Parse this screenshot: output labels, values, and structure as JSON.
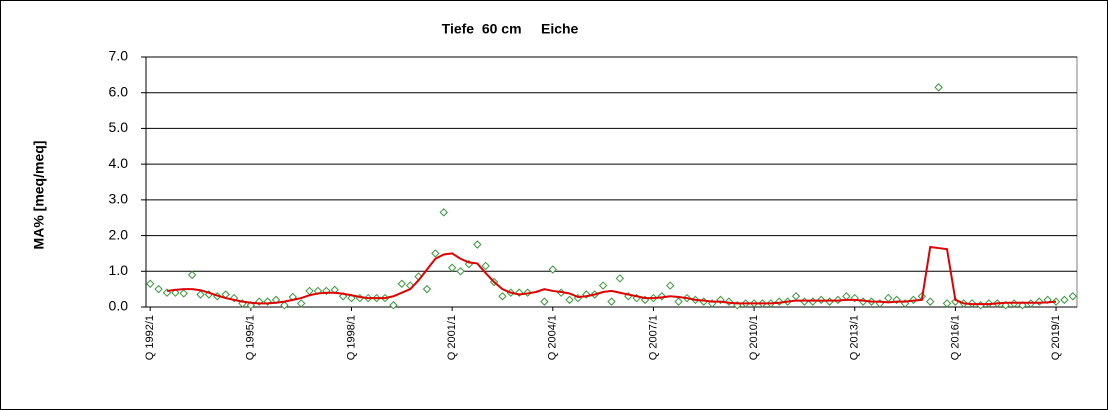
{
  "chart_data": {
    "type": "line",
    "title": "Tiefe  60 cm     Eiche",
    "y_label": "MA% [meq/meq]",
    "categories": [
      "Q 1992/1",
      null,
      null,
      null,
      null,
      null,
      null,
      null,
      null,
      null,
      null,
      null,
      "Q 1995/1",
      null,
      null,
      null,
      null,
      null,
      null,
      null,
      null,
      null,
      null,
      null,
      "Q 1998/1",
      null,
      null,
      null,
      null,
      null,
      null,
      null,
      null,
      null,
      null,
      null,
      "Q 2001/1",
      null,
      null,
      null,
      null,
      null,
      null,
      null,
      null,
      null,
      null,
      null,
      "Q 2004/1",
      null,
      null,
      null,
      null,
      null,
      null,
      null,
      null,
      null,
      null,
      null,
      "Q 2007/1",
      null,
      null,
      null,
      null,
      null,
      null,
      null,
      null,
      null,
      null,
      null,
      "Q 2010/1",
      null,
      null,
      null,
      null,
      null,
      null,
      null,
      null,
      null,
      null,
      null,
      "Q 2013/1",
      null,
      null,
      null,
      null,
      null,
      null,
      null,
      null,
      null,
      null,
      null,
      "Q 2016/1",
      null,
      null,
      null,
      null,
      null,
      null,
      null,
      null,
      null,
      null,
      null,
      "Q 2019/1",
      null,
      null
    ],
    "series": [
      {
        "color": "#3a9a3a",
        "style": "markers",
        "marker": "diamond",
        "values": [
          0.65,
          0.5,
          0.4,
          0.4,
          0.38,
          0.9,
          0.35,
          0.35,
          0.3,
          0.35,
          0.25,
          0.1,
          0.05,
          0.15,
          0.15,
          0.2,
          0.05,
          0.28,
          0.1,
          0.45,
          0.45,
          0.45,
          0.48,
          0.3,
          0.25,
          0.25,
          0.25,
          0.25,
          0.25,
          0.05,
          0.65,
          0.6,
          0.85,
          0.5,
          1.5,
          2.65,
          1.1,
          1.0,
          1.2,
          1.75,
          1.15,
          0.7,
          0.3,
          0.4,
          0.4,
          0.4,
          null,
          0.15,
          1.05,
          0.4,
          0.2,
          0.25,
          0.35,
          0.35,
          0.6,
          0.15,
          0.8,
          0.3,
          0.25,
          0.2,
          0.25,
          0.3,
          0.6,
          0.15,
          0.25,
          0.2,
          0.15,
          0.1,
          0.2,
          0.15,
          0.05,
          0.1,
          0.1,
          0.1,
          0.1,
          0.15,
          0.15,
          0.3,
          0.15,
          0.15,
          0.2,
          0.15,
          0.2,
          0.3,
          0.25,
          0.15,
          0.15,
          0.1,
          0.25,
          0.2,
          0.1,
          0.2,
          0.3,
          0.15,
          6.15,
          0.1,
          0.15,
          0.1,
          0.1,
          0.05,
          0.1,
          0.1,
          0.05,
          0.1,
          0.05,
          0.1,
          0.15,
          0.2,
          0.15,
          0.2,
          0.3
        ]
      },
      {
        "color": "#e00000",
        "style": "line",
        "values": [
          null,
          null,
          0.45,
          0.48,
          0.5,
          0.5,
          0.47,
          0.4,
          0.32,
          0.25,
          0.2,
          0.15,
          0.12,
          0.1,
          0.1,
          0.12,
          0.15,
          0.2,
          0.25,
          0.33,
          0.38,
          0.4,
          0.4,
          0.37,
          0.33,
          0.28,
          0.25,
          0.25,
          0.25,
          0.3,
          0.4,
          0.5,
          0.75,
          1.05,
          1.35,
          1.47,
          1.5,
          1.35,
          1.25,
          1.22,
          0.95,
          0.7,
          0.5,
          0.4,
          0.35,
          0.38,
          0.42,
          0.5,
          0.45,
          0.42,
          0.38,
          0.28,
          0.3,
          0.35,
          0.42,
          0.45,
          0.4,
          0.35,
          0.3,
          0.25,
          0.25,
          0.27,
          0.3,
          0.28,
          0.25,
          0.2,
          0.18,
          0.15,
          0.15,
          0.12,
          0.1,
          0.1,
          0.1,
          0.1,
          0.1,
          0.12,
          0.15,
          0.18,
          0.18,
          0.18,
          0.18,
          0.18,
          0.18,
          0.2,
          0.2,
          0.18,
          0.15,
          0.15,
          0.13,
          0.15,
          0.15,
          0.18,
          0.2,
          1.68,
          1.65,
          1.62,
          0.2,
          0.1,
          0.08,
          0.08,
          0.08,
          0.1,
          0.12,
          0.12,
          0.12,
          0.12,
          0.12,
          0.13,
          0.15,
          null,
          null
        ]
      }
    ],
    "ylim": [
      0,
      7
    ],
    "yticks": [
      {
        "value": 0,
        "label": "0.0"
      },
      {
        "value": 1,
        "label": "1.0"
      },
      {
        "value": 2,
        "label": "2.0"
      },
      {
        "value": 3,
        "label": "3.0"
      },
      {
        "value": 4,
        "label": "4.0"
      },
      {
        "value": 5,
        "label": "5.0"
      },
      {
        "value": 6,
        "label": "6.0"
      },
      {
        "value": 7,
        "label": "7.0"
      }
    ],
    "grid": true
  }
}
